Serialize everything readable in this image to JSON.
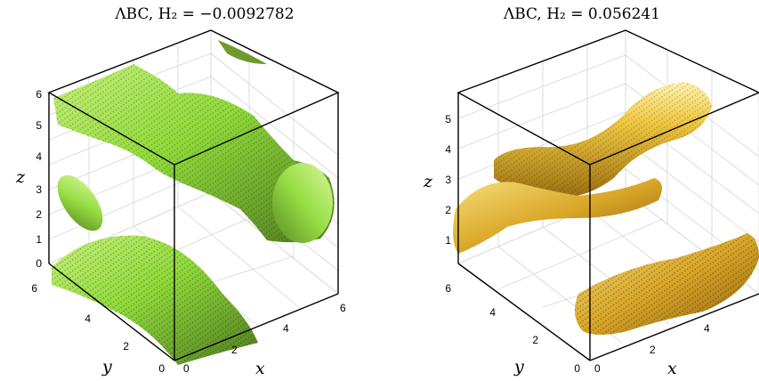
{
  "chart_data": [
    {
      "type": "isosurface-3d",
      "title": "ΛBC, H₂ = −0.0092782",
      "xlabel": "x",
      "ylabel": "y",
      "zlabel": "z",
      "xticks": [
        "0",
        "2",
        "4",
        "6"
      ],
      "yticks": [
        "0",
        "2",
        "4",
        "6"
      ],
      "zticks": [
        "0",
        "1",
        "2",
        "3",
        "4",
        "5",
        "6"
      ],
      "xlim": [
        0,
        6.28
      ],
      "ylim": [
        0,
        6.28
      ],
      "zlim": [
        0,
        6.28
      ],
      "grid": true,
      "surface_color": "#8fd93a"
    },
    {
      "type": "isosurface-3d",
      "title": "ΛBC, H₂ = 0.056241",
      "xlabel": "x",
      "ylabel": "y",
      "zlabel": "z",
      "xticks": [
        "0",
        "2",
        "4"
      ],
      "yticks": [
        "0",
        "2",
        "4",
        "6"
      ],
      "zticks": [
        "1",
        "2",
        "3",
        "4",
        "5"
      ],
      "xlim": [
        0,
        6.28
      ],
      "ylim": [
        0,
        6.28
      ],
      "zlim": [
        0.5,
        5.8
      ],
      "grid": true,
      "surface_color": "#e0b030"
    }
  ]
}
